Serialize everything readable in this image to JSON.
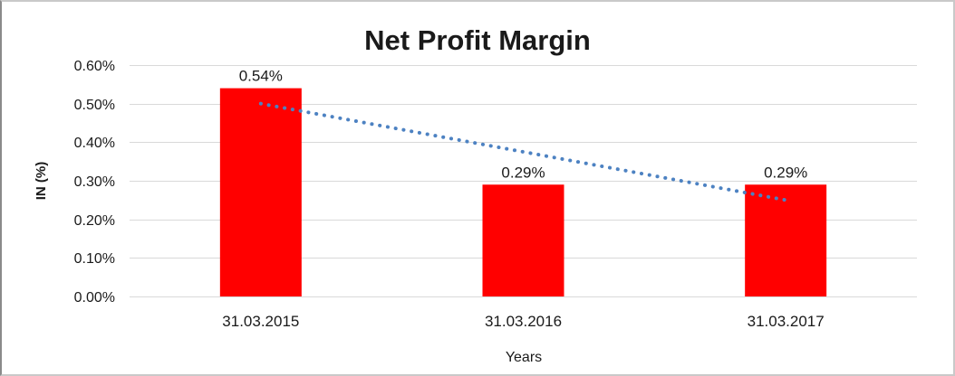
{
  "chart_data": {
    "type": "bar",
    "title": "Net Profit Margin",
    "xlabel": "Years",
    "ylabel": "IN (%)",
    "categories": [
      "31.03.2015",
      "31.03.2016",
      "31.03.2017"
    ],
    "values": [
      0.54,
      0.29,
      0.29
    ],
    "data_labels": [
      "0.54%",
      "0.29%",
      "0.29%"
    ],
    "yticks": [
      "0.60%",
      "0.50%",
      "0.40%",
      "0.30%",
      "0.20%",
      "0.10%",
      "0.00%"
    ],
    "ylim": [
      0,
      0.6
    ],
    "grid": "horizontal",
    "legend": "none",
    "colors": {
      "bar": "#ff0000",
      "gridline": "#d9d9d9",
      "text": "#1a1a1a",
      "trendline": "#4d82c2"
    },
    "trendline": {
      "style": "dotted",
      "color": "#4d82c2",
      "start_value": 0.5,
      "end_value": 0.25,
      "from_category": "31.03.2015",
      "to_category": "31.03.2017"
    }
  }
}
